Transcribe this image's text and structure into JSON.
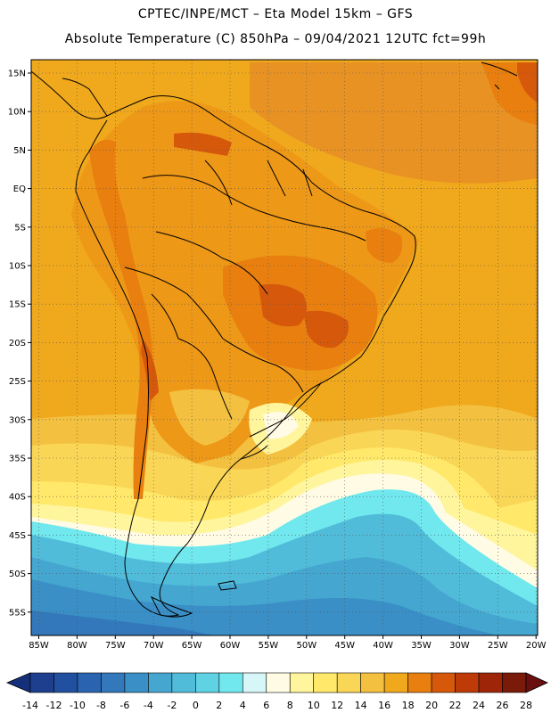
{
  "title_line1": "CPTEC/INPE/MCT –  Eta Model 15km – GFS",
  "title_line2": "Absolute Temperature (C) 850hPa – 09/04/2021 12UTC fct=99h",
  "lat_labels": [
    "15N",
    "10N",
    "5N",
    "EQ",
    "5S",
    "10S",
    "15S",
    "20S",
    "25S",
    "30S",
    "35S",
    "40S",
    "45S",
    "50S",
    "55S"
  ],
  "lon_labels": [
    "85W",
    "80W",
    "75W",
    "70W",
    "65W",
    "60W",
    "55W",
    "50W",
    "45W",
    "40W",
    "35W",
    "30W",
    "25W",
    "20W"
  ],
  "colorbar": {
    "labels": [
      "-14",
      "-12",
      "-10",
      "-8",
      "-6",
      "-4",
      "-2",
      "0",
      "2",
      "4",
      "6",
      "8",
      "10",
      "12",
      "14",
      "16",
      "18",
      "20",
      "22",
      "24",
      "26",
      "28"
    ],
    "colors": [
      "#1e3f8e",
      "#2250a0",
      "#2a63b0",
      "#3278bb",
      "#3a8fc6",
      "#45a6d0",
      "#50bcd9",
      "#5fd2e4",
      "#70e8ee",
      "#d6f6f8",
      "#fffbe4",
      "#fff59c",
      "#ffe86a",
      "#fad656",
      "#f3c13f",
      "#f0a81c",
      "#e87f0f",
      "#d6590b",
      "#be3b08",
      "#9e2507",
      "#7a1a08"
    ],
    "under_color": "#14307a",
    "over_color": "#6a0f0f"
  },
  "colors": {
    "ocean_orange": "#f0a81c",
    "land_hot": "#e87f0f",
    "cold_sea": "#45a6d0"
  }
}
